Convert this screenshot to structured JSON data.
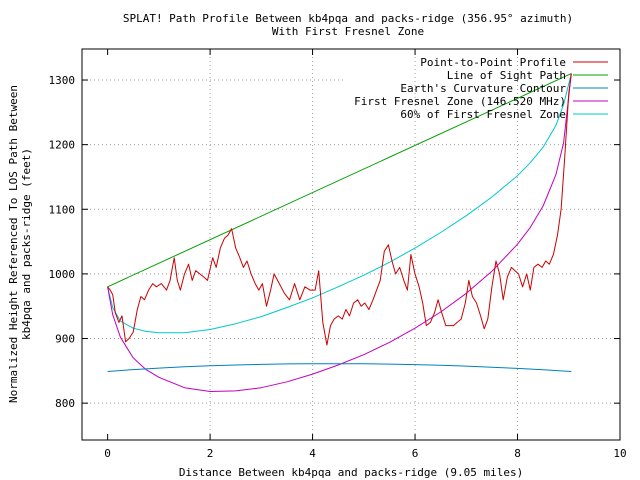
{
  "chart_data": {
    "type": "line",
    "title": "SPLAT! Path Profile Between kb4pqa and packs-ridge (356.95° azimuth)",
    "subtitle": "With First Fresnel Zone",
    "xlabel": "Distance Between kb4pqa and packs-ridge (9.05 miles)",
    "ylabel_line1": "Normalized Height Referenced To LOS Path Between",
    "ylabel_line2": "kb4pqa and packs-ridge (feet)",
    "xlim": [
      -0.5,
      10
    ],
    "ylim": [
      743,
      1348
    ],
    "x_ticks": [
      0,
      2,
      4,
      6,
      8,
      10
    ],
    "x_tick_labels": [
      "0",
      "2",
      "4",
      "6",
      "8",
      "10"
    ],
    "y_ticks": [
      800,
      900,
      1000,
      1100,
      1200,
      1300
    ],
    "y_tick_labels": [
      "800",
      "900",
      "1000",
      "1100",
      "1200",
      "1300"
    ],
    "grid": true,
    "legend_position": "top-right",
    "series": [
      {
        "name": "Point-to-Point Profile",
        "color": "#cc0000",
        "x": [
          0,
          0.05,
          0.1,
          0.15,
          0.22,
          0.28,
          0.35,
          0.42,
          0.5,
          0.58,
          0.65,
          0.72,
          0.8,
          0.88,
          0.95,
          1.05,
          1.15,
          1.22,
          1.3,
          1.36,
          1.42,
          1.5,
          1.58,
          1.65,
          1.72,
          1.8,
          1.88,
          1.95,
          2.05,
          2.12,
          2.2,
          2.28,
          2.35,
          2.42,
          2.5,
          2.58,
          2.65,
          2.72,
          2.8,
          2.88,
          2.95,
          3.02,
          3.1,
          3.18,
          3.25,
          3.35,
          3.45,
          3.55,
          3.65,
          3.75,
          3.85,
          3.95,
          4.05,
          4.12,
          4.2,
          4.28,
          4.35,
          4.42,
          4.5,
          4.58,
          4.65,
          4.72,
          4.8,
          4.88,
          4.95,
          5.02,
          5.1,
          5.18,
          5.25,
          5.32,
          5.4,
          5.48,
          5.55,
          5.62,
          5.7,
          5.78,
          5.85,
          5.92,
          6.0,
          6.08,
          6.15,
          6.22,
          6.3,
          6.38,
          6.45,
          6.52,
          6.6,
          6.68,
          6.75,
          6.82,
          6.9,
          6.98,
          7.05,
          7.12,
          7.2,
          7.28,
          7.35,
          7.42,
          7.5,
          7.58,
          7.65,
          7.72,
          7.8,
          7.88,
          7.95,
          8.02,
          8.1,
          8.18,
          8.25,
          8.32,
          8.4,
          8.48,
          8.55,
          8.62,
          8.7,
          8.78,
          8.85,
          8.92,
          9.0,
          9.05
        ],
        "y": [
          980,
          975,
          968,
          940,
          925,
          935,
          895,
          900,
          910,
          945,
          965,
          960,
          975,
          985,
          980,
          985,
          975,
          990,
          1025,
          990,
          975,
          1000,
          1015,
          990,
          1005,
          1000,
          995,
          990,
          1025,
          1010,
          1040,
          1055,
          1060,
          1070,
          1040,
          1025,
          1010,
          1020,
          1000,
          985,
          975,
          985,
          950,
          975,
          1000,
          985,
          970,
          960,
          985,
          960,
          980,
          975,
          975,
          1005,
          925,
          890,
          920,
          930,
          935,
          930,
          945,
          935,
          955,
          960,
          950,
          955,
          945,
          960,
          975,
          990,
          1035,
          1045,
          1020,
          1000,
          1010,
          990,
          975,
          1030,
          1000,
          980,
          955,
          920,
          925,
          940,
          960,
          940,
          920,
          920,
          920,
          925,
          930,
          955,
          990,
          965,
          955,
          935,
          915,
          930,
          980,
          1020,
          1000,
          960,
          995,
          1010,
          1005,
          1000,
          980,
          1000,
          975,
          1010,
          1015,
          1010,
          1020,
          1015,
          1030,
          1060,
          1100,
          1180,
          1280,
          1310
        ]
      },
      {
        "name": "Line of Sight Path",
        "color": "#00a000",
        "x": [
          0,
          9.05
        ],
        "y": [
          980,
          1310
        ]
      },
      {
        "name": "Earth's Curvature Contour",
        "color": "#0080c0",
        "x": [
          0,
          0.5,
          1,
          1.5,
          2,
          2.5,
          3,
          3.5,
          4,
          4.5,
          5,
          5.5,
          6,
          6.5,
          7,
          7.5,
          8,
          8.5,
          9.05
        ],
        "y": [
          849,
          851.9,
          854.3,
          856.3,
          857.8,
          859.1,
          860.0,
          860.7,
          861.0,
          861.1,
          860.9,
          860.4,
          859.6,
          858.6,
          857.3,
          855.7,
          853.8,
          851.6,
          849
        ]
      },
      {
        "name": "First Fresnel Zone (146.520 MHz)",
        "color": "#c000c0",
        "x": [
          0,
          0.1,
          0.25,
          0.5,
          0.75,
          1,
          1.5,
          2,
          2.5,
          3,
          3.5,
          4,
          4.5,
          5,
          5.5,
          6,
          6.5,
          7,
          7.5,
          8,
          8.25,
          8.5,
          8.75,
          8.9,
          9.05
        ],
        "y": [
          980,
          937,
          902,
          870,
          852,
          840,
          824,
          818,
          819,
          824,
          833,
          845,
          859,
          875,
          894,
          916,
          941,
          970,
          1004,
          1046,
          1072,
          1105,
          1154,
          1203,
          1310
        ]
      },
      {
        "name": "60% of First Fresnel Zone",
        "color": "#00c8c8",
        "x": [
          0,
          0.1,
          0.25,
          0.5,
          0.75,
          1,
          1.5,
          2,
          2.5,
          3,
          3.5,
          4,
          4.5,
          5,
          5.5,
          6,
          6.5,
          7,
          7.5,
          8,
          8.25,
          8.5,
          8.75,
          8.9,
          9.05
        ],
        "y": [
          980,
          948,
          927,
          916,
          911,
          909,
          909,
          914,
          923,
          934,
          948,
          963,
          980,
          998,
          1018,
          1040,
          1064,
          1090,
          1119,
          1152,
          1172,
          1196,
          1230,
          1262,
          1310
        ]
      }
    ]
  }
}
